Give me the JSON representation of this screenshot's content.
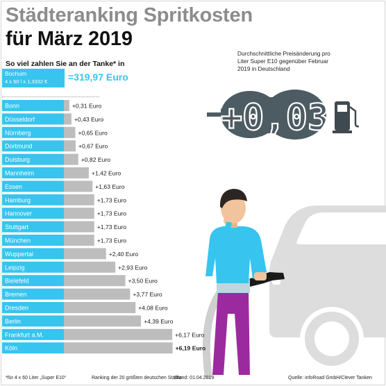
{
  "header": {
    "title_line1": "Städteranking Spritkosten",
    "title_line2": "für März 2019",
    "subtitle": "So viel zahlen Sie an der Tanke* in"
  },
  "reference": {
    "city": "Bochum",
    "calc": "4 x 60 l x 1,3332 €",
    "total": "=319,97 Euro"
  },
  "price_change": {
    "description": "Durchschnittliche Preisänderung pro Liter Super E10 gegenüber Februar 2019 in Deutschland",
    "value": "+0,03"
  },
  "chart_data": {
    "type": "bar",
    "orientation": "horizontal",
    "title": "Städteranking Spritkosten für März 2019",
    "unit": "Euro",
    "reference": {
      "city": "Bochum",
      "value": 319.97
    },
    "categories": [
      "Bonn",
      "Düsseldorf",
      "Nürnberg",
      "Dortmund",
      "Duisburg",
      "Mannheim",
      "Essen",
      "Hamburg",
      "Hannover",
      "Stuttgart",
      "München",
      "Wuppertal",
      "Leipzig",
      "Bielefeld",
      "Bremen",
      "Dresden",
      "Berlin",
      "Frankfurt a.M.",
      "Köln"
    ],
    "values": [
      0.31,
      0.43,
      0.65,
      0.67,
      0.82,
      1.42,
      1.63,
      1.73,
      1.73,
      1.73,
      1.73,
      2.4,
      2.93,
      3.5,
      3.77,
      4.08,
      4.39,
      6.17,
      6.19
    ],
    "value_labels": [
      "+0,31 Euro",
      "+0,43 Euro",
      "+0,65 Euro",
      "+0,67 Euro",
      "+0,82 Euro",
      "+1,42 Euro",
      "+1,63 Euro",
      "+1,73 Euro",
      "+1,73 Euro",
      "+1,73 Euro",
      "+1,73 Euro",
      "+2,40 Euro",
      "+2,93 Euro",
      "+3,50 Euro",
      "+3,77 Euro",
      "+4,08 Euro",
      "+4,39 Euro",
      "+6,17 Euro",
      "+6,19 Euro"
    ],
    "colors": {
      "label_box": "#37c4ee",
      "bar": "#bdbdbd",
      "highlight_label": "#1a1a1a"
    }
  },
  "footer": {
    "note": "*für 4 x 60 Liter „Super E10“",
    "ranking": "Ranking der 20 größten deutschen Städte",
    "date": "Stand: 01.04.2019",
    "source": "Quelle: infoRoad GmbH/Clever Tanken"
  },
  "icons": [
    "arrow-right-icon",
    "fuel-pump-icon",
    "man-refueling-illustration",
    "car-illustration"
  ]
}
